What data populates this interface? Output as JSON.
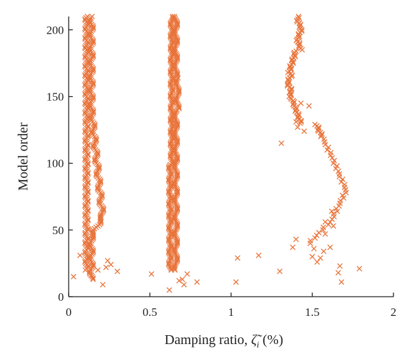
{
  "chart_data": {
    "type": "scatter",
    "marker": "x",
    "marker_color": "#E8743B",
    "title": "",
    "xlabel": "Damping ratio, ζ̃ᵢ (%)",
    "xlabel_main": "Damping ratio, ",
    "xlabel_symbol": "ζ̃",
    "xlabel_subscript": "i",
    "xlabel_unit": " (%)",
    "ylabel": "Model order",
    "xlim": [
      0,
      2
    ],
    "ylim": [
      0,
      210
    ],
    "x_ticks": [
      0,
      0.5,
      1,
      1.5,
      2
    ],
    "x_tick_labels": [
      "0",
      "0.5",
      "1",
      "1.5",
      "2"
    ],
    "y_ticks": [
      0,
      50,
      100,
      150,
      200
    ],
    "y_tick_labels": [
      "0",
      "50",
      "100",
      "150",
      "200"
    ],
    "grid": false,
    "legend": "none",
    "series": [
      {
        "points": [
          [
            0.03,
            15
          ],
          [
            0.07,
            31
          ],
          [
            0.14,
            16
          ],
          [
            0.15,
            13
          ],
          [
            0.18,
            20
          ],
          [
            0.21,
            9
          ],
          [
            0.23,
            22
          ],
          [
            0.24,
            27
          ],
          [
            0.26,
            24
          ],
          [
            0.3,
            19
          ],
          [
            0.51,
            17
          ],
          [
            0.62,
            5
          ],
          [
            0.68,
            12
          ],
          [
            0.7,
            13
          ],
          [
            0.71,
            9
          ],
          [
            0.73,
            17
          ],
          [
            0.79,
            11
          ],
          [
            1.03,
            11
          ],
          [
            1.04,
            29
          ],
          [
            1.17,
            31
          ],
          [
            1.3,
            19
          ],
          [
            1.31,
            115
          ],
          [
            1.38,
            37
          ],
          [
            1.4,
            43
          ],
          [
            1.4,
            131
          ],
          [
            1.41,
            127
          ],
          [
            1.43,
            145
          ],
          [
            1.45,
            124
          ],
          [
            1.48,
            143
          ],
          [
            1.5,
            30
          ],
          [
            1.51,
            36
          ],
          [
            1.53,
            26
          ],
          [
            1.55,
            29
          ],
          [
            1.57,
            34
          ],
          [
            1.58,
            47
          ],
          [
            1.58,
            56
          ],
          [
            1.61,
            37
          ],
          [
            1.62,
            64
          ],
          [
            1.63,
            53
          ],
          [
            1.66,
            18
          ],
          [
            1.67,
            23
          ],
          [
            1.68,
            11
          ],
          [
            1.79,
            21
          ]
        ]
      }
    ]
  }
}
